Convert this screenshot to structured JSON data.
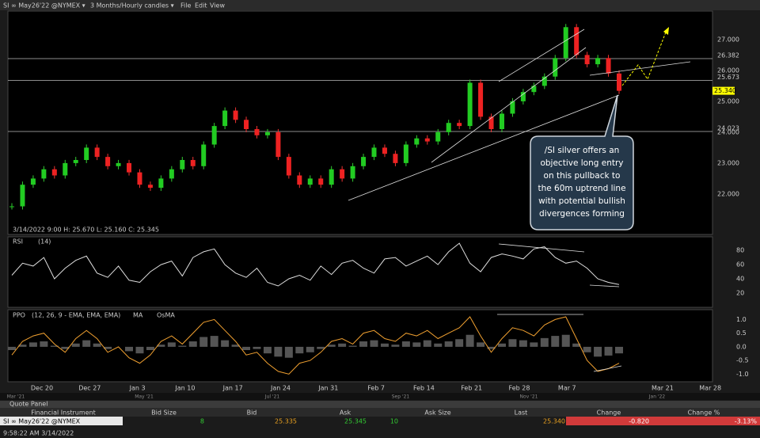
{
  "toolbar": {
    "symbol": "SI ∞ May26'22 @NYMEX ▾",
    "timeframe": "3 Months/Hourly candles ▾",
    "menus": [
      "File",
      "Edit",
      "View"
    ]
  },
  "price_panel": {
    "ohlc": "3/14/2022 9:00   H: 25.670   L: 25.160   C: 25.345",
    "ylim": [
      20.69,
      27.92
    ],
    "yticks": [
      {
        "value": 27,
        "label": "27.000"
      },
      {
        "value": 26,
        "label": "26.000"
      },
      {
        "value": 25,
        "label": "25.000"
      },
      {
        "value": 24,
        "label": "24.000"
      },
      {
        "value": 23,
        "label": "23.000"
      },
      {
        "value": 22,
        "label": "22.000"
      }
    ],
    "levels": [
      {
        "value": 26.382,
        "label": "26.382"
      },
      {
        "value": 25.673,
        "label": "25.673"
      },
      {
        "value": 24.023,
        "label": "24.023"
      }
    ],
    "last": {
      "value": 25.34,
      "label": "25.340"
    },
    "closes": [
      21.6,
      22.3,
      22.5,
      22.8,
      22.6,
      23.0,
      23.1,
      23.5,
      23.2,
      22.9,
      23.0,
      22.7,
      22.3,
      22.2,
      22.5,
      22.8,
      23.1,
      22.9,
      23.6,
      24.2,
      24.7,
      24.4,
      24.1,
      23.9,
      24.0,
      23.2,
      22.6,
      22.3,
      22.5,
      22.3,
      22.8,
      22.5,
      22.9,
      23.2,
      23.5,
      23.3,
      23.0,
      23.6,
      23.8,
      23.7,
      24.0,
      24.3,
      24.2,
      25.6,
      24.5,
      24.1,
      24.6,
      25.0,
      25.3,
      25.5,
      25.8,
      26.4,
      27.4,
      26.5,
      26.2,
      26.4,
      25.9,
      25.34
    ],
    "annotation": [
      "/SI silver offers an",
      "objective long entry",
      "on this pullback to",
      "the 60m uptrend line",
      "with potential bullish",
      "divergences forming"
    ]
  },
  "rsi_panel": {
    "title": "RSI",
    "params": "(14)",
    "ylim": [
      0,
      99
    ],
    "yticks": [
      80,
      60,
      40,
      20
    ],
    "values": [
      45,
      62,
      58,
      70,
      40,
      55,
      66,
      72,
      48,
      42,
      58,
      38,
      35,
      50,
      60,
      65,
      44,
      70,
      78,
      82,
      60,
      48,
      42,
      55,
      35,
      30,
      40,
      45,
      38,
      58,
      46,
      62,
      66,
      55,
      48,
      68,
      70,
      58,
      65,
      72,
      60,
      78,
      90,
      62,
      50,
      70,
      75,
      72,
      68,
      82,
      85,
      70,
      62,
      65,
      55,
      40,
      35,
      32
    ],
    "divergence": true
  },
  "ppo_panel": {
    "title": "PPO",
    "params": "(12, 26, 9 - EMA, EMA, EMA)",
    "legend": [
      "MA",
      "OsMA"
    ],
    "ylim": [
      -1.28,
      1.36
    ],
    "yticks": [
      {
        "value": 1,
        "label": "1.0"
      },
      {
        "value": 0.5,
        "label": "0.5"
      },
      {
        "value": 0,
        "label": "0.0"
      },
      {
        "value": -0.5,
        "label": "-0.5"
      },
      {
        "value": -1,
        "label": "-1.0"
      }
    ],
    "values": [
      -0.3,
      0.2,
      0.4,
      0.5,
      0.1,
      -0.2,
      0.3,
      0.6,
      0.3,
      -0.2,
      0.0,
      -0.4,
      -0.6,
      -0.3,
      0.2,
      0.4,
      0.1,
      0.5,
      0.9,
      1.0,
      0.6,
      0.2,
      -0.3,
      -0.2,
      -0.6,
      -0.9,
      -1.0,
      -0.6,
      -0.5,
      -0.2,
      0.2,
      0.3,
      0.1,
      0.5,
      0.6,
      0.3,
      0.2,
      0.5,
      0.4,
      0.6,
      0.3,
      0.5,
      0.7,
      1.1,
      0.4,
      -0.2,
      0.3,
      0.7,
      0.6,
      0.4,
      0.8,
      1.0,
      1.1,
      0.3,
      -0.5,
      -0.9,
      -0.8,
      -0.6
    ]
  },
  "dates": [
    "Dec 20",
    "Dec 27",
    "Jan 3",
    "Jan 10",
    "Jan 17",
    "Jan 24",
    "Jan 31",
    "Feb 7",
    "Feb 14",
    "Feb 21",
    "Feb 28",
    "Mar 7",
    "Mar 21",
    "Mar 28"
  ],
  "overview": [
    "Mar '21",
    "May '21",
    "Jul '21",
    "Sep '21",
    "Nov '21",
    "Jan '22"
  ],
  "quote_panel": {
    "title": "Quote Panel",
    "headers": [
      "Financial Instrument",
      "Bid Size",
      "Bid",
      "Ask",
      "Ask Size",
      "Last",
      "Change",
      "Change %"
    ],
    "row": [
      "SI ∞ May26'22 @NYMEX",
      "8",
      "25.335",
      "25.345",
      "10",
      "25.340",
      "-0.820",
      "-3.13%"
    ]
  },
  "status": "9:58:22 AM 3/14/2022"
}
